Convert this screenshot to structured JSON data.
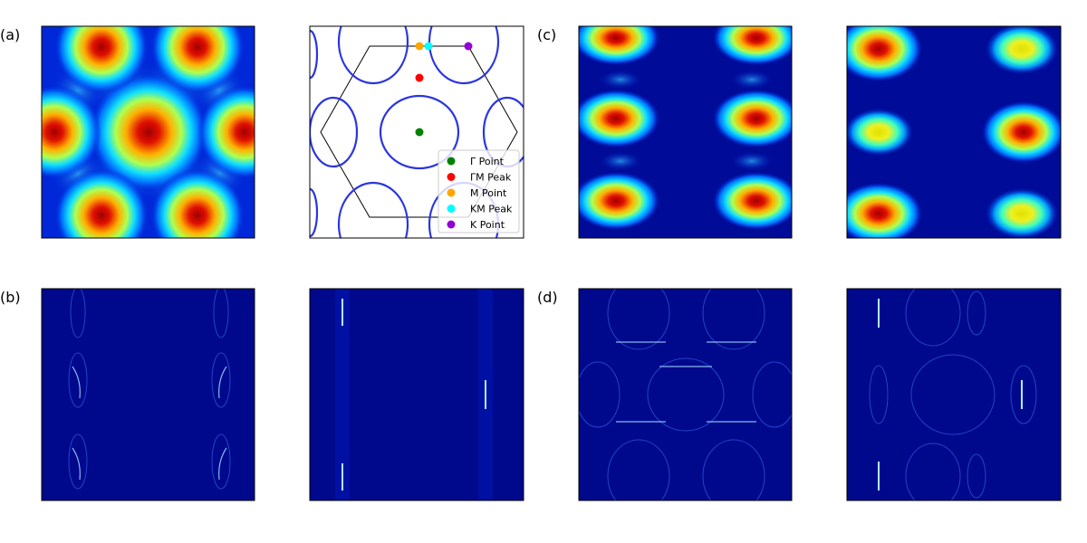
{
  "panel_labels": [
    "(a)",
    "(b)",
    "(c)",
    "(d)"
  ],
  "legend": {
    "entries": [
      {
        "label": "Γ Point",
        "color": "#008000"
      },
      {
        "label": "ΓM Peak",
        "color": "#ff0000"
      },
      {
        "label": "M Point",
        "color": "#ffa500"
      },
      {
        "label": "KM Peak",
        "color": "#00ffff"
      },
      {
        "label": "K Point",
        "color": "#9400d3"
      }
    ]
  }
}
